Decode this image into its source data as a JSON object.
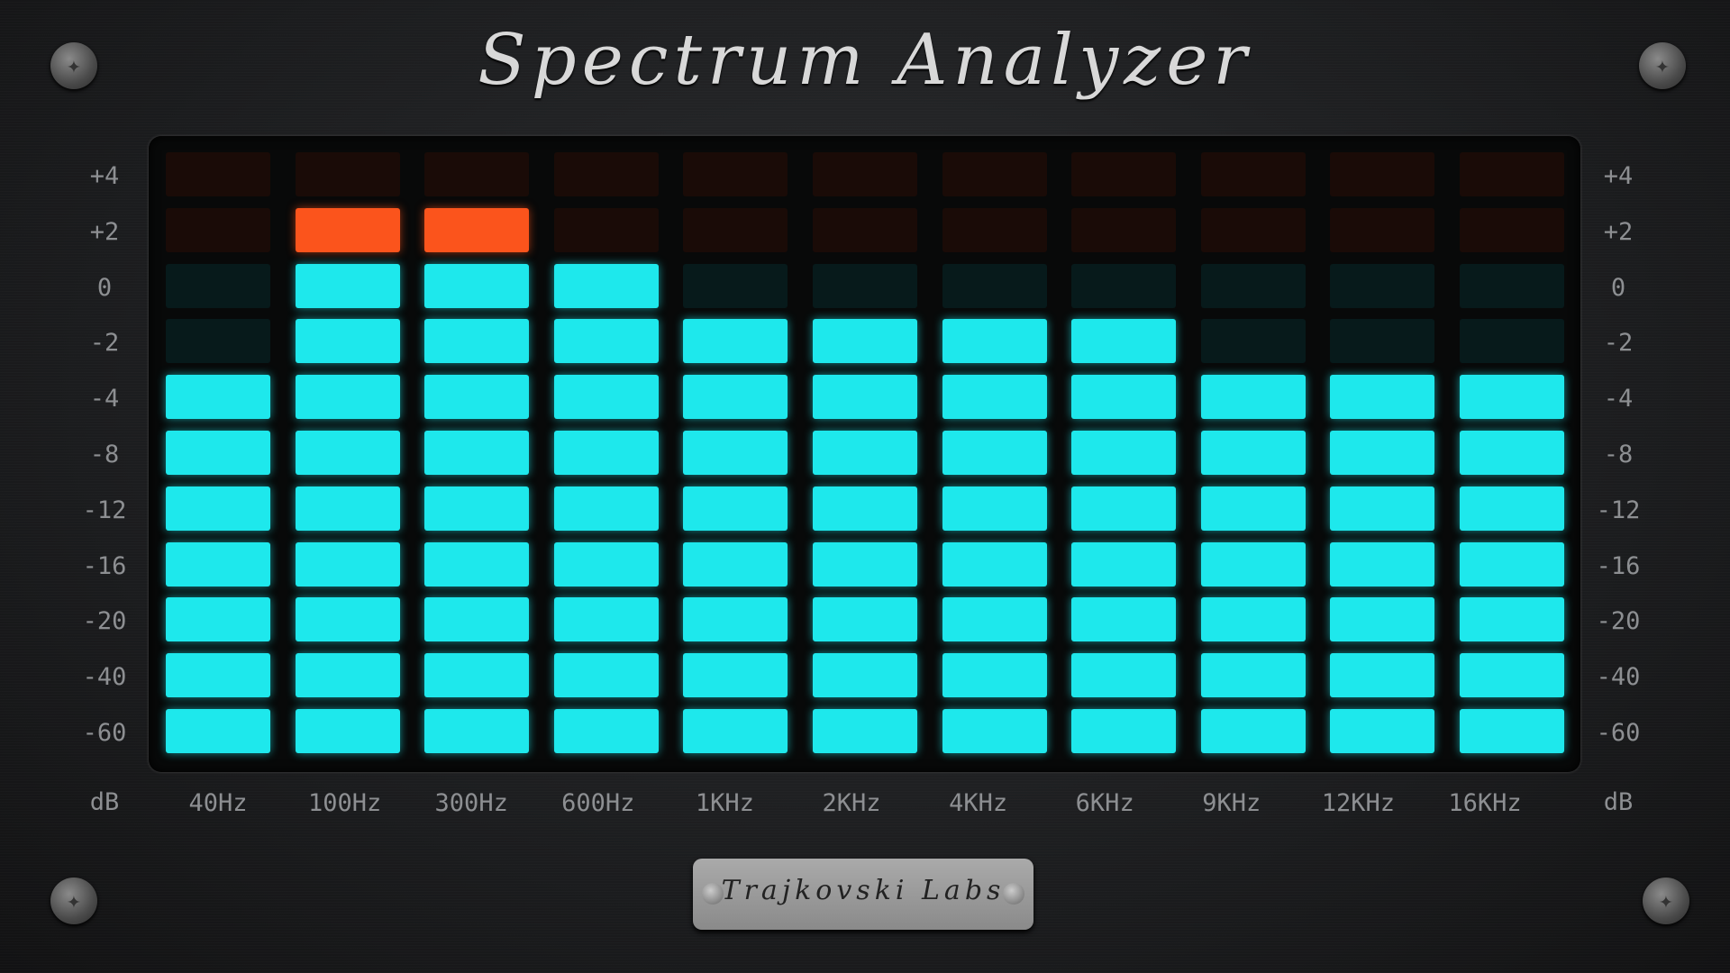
{
  "title": "Spectrum Analyzer",
  "brand": "Trajkovski Labs",
  "unit_label": "dB",
  "colors": {
    "active": "#1ee8ec",
    "peak": "#fb541c",
    "inactive": "#071a1b",
    "inactive_peak": "#1a0b07"
  },
  "chart_data": {
    "type": "bar",
    "title": "Spectrum Analyzer",
    "ylabel": "dB",
    "y_ticks": [
      "+4",
      "+2",
      "0",
      "-2",
      "-4",
      "-8",
      "-12",
      "-16",
      "-20",
      "-40",
      "-60"
    ],
    "peak_levels": [
      "+4",
      "+2"
    ],
    "categories": [
      "40Hz",
      "100Hz",
      "300Hz",
      "600Hz",
      "1KHz",
      "2KHz",
      "4KHz",
      "6KHz",
      "9KHz",
      "12KHz",
      "16KHz"
    ],
    "values": [
      "-4",
      "+2",
      "+2",
      "0",
      "-2",
      "-2",
      "-2",
      "-2",
      "-4",
      "-4",
      "-4"
    ],
    "grid": false,
    "legend": "none"
  }
}
